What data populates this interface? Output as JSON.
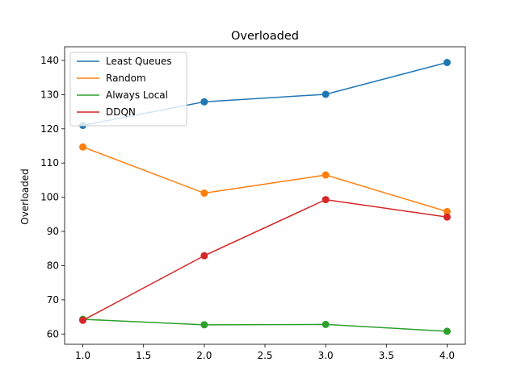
{
  "chart_data": {
    "type": "line",
    "title": "Overloaded",
    "xlabel": "",
    "ylabel": "Overloaded",
    "x": [
      1.0,
      2.0,
      3.0,
      4.0
    ],
    "xlim": [
      0.85,
      4.15
    ],
    "ylim": [
      57,
      144
    ],
    "xticks": [
      1.0,
      1.5,
      2.0,
      2.5,
      3.0,
      3.5,
      4.0
    ],
    "xtick_labels": [
      "1.0",
      "1.5",
      "2.0",
      "2.5",
      "3.0",
      "3.5",
      "4.0"
    ],
    "yticks": [
      60,
      70,
      80,
      90,
      100,
      110,
      120,
      130,
      140
    ],
    "ytick_labels": [
      "60",
      "70",
      "80",
      "90",
      "100",
      "110",
      "120",
      "130",
      "140"
    ],
    "grid": false,
    "legend": "top-left",
    "series": [
      {
        "name": "Least Queues",
        "color": "#1f77b4",
        "values": [
          121.0,
          127.9,
          130.1,
          139.4
        ]
      },
      {
        "name": "Random",
        "color": "#ff7f0e",
        "values": [
          114.7,
          101.2,
          106.5,
          95.8
        ]
      },
      {
        "name": "Always Local",
        "color": "#2ca02c",
        "values": [
          64.3,
          62.7,
          62.8,
          60.8
        ]
      },
      {
        "name": "DDQN",
        "color": "#d62728",
        "values": [
          64.0,
          82.9,
          99.3,
          94.2
        ]
      }
    ]
  }
}
